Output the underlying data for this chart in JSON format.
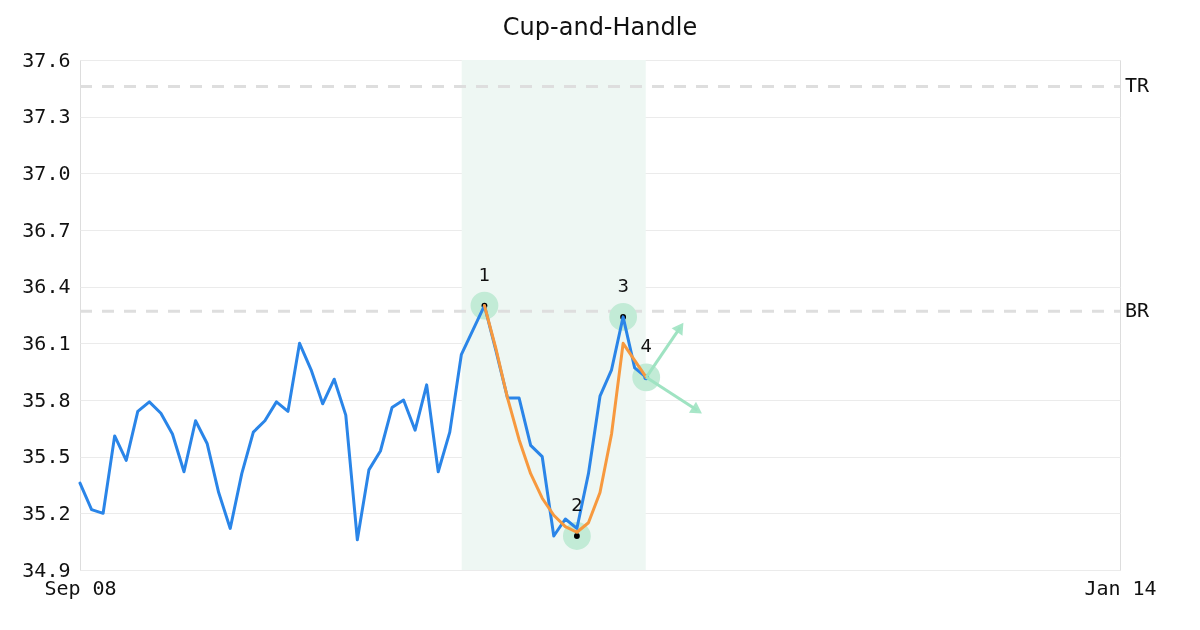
{
  "chart_data": {
    "type": "line",
    "title": "Cup-and-Handle",
    "categories": [
      "Sep 08",
      null,
      null,
      null,
      null,
      null,
      null,
      null,
      null,
      null,
      null,
      null,
      null,
      null,
      null,
      null,
      null,
      null,
      null,
      null,
      null,
      null,
      null,
      null,
      null,
      null,
      null,
      null,
      null,
      null,
      null,
      null,
      null,
      null,
      null,
      null,
      null,
      null,
      null,
      null,
      null,
      null,
      null,
      null,
      null,
      null,
      null,
      null,
      null,
      null,
      null,
      null,
      null,
      null,
      null,
      null,
      null,
      null,
      null,
      null,
      null,
      null,
      null,
      null,
      null,
      null,
      null,
      null,
      null,
      null,
      null,
      null,
      null,
      null,
      null,
      null,
      null,
      null,
      null,
      null,
      null,
      null,
      null,
      null,
      null,
      null,
      null,
      null,
      null,
      null,
      "Jan 14"
    ],
    "ylim": [
      34.9,
      37.6
    ],
    "yticks": [
      34.9,
      35.2,
      35.5,
      35.8,
      36.1,
      36.4,
      36.7,
      {
        "value": 37,
        "label": "37.0"
      },
      37.3,
      37.6
    ],
    "grid": "y",
    "series": [
      {
        "color": "#2a85e8",
        "values": [
          35.36,
          35.22,
          35.2,
          35.61,
          35.48,
          35.74,
          35.79,
          35.73,
          35.62,
          35.42,
          35.69,
          35.57,
          35.31,
          35.12,
          35.41,
          35.63,
          35.69,
          35.79,
          35.74,
          36.1,
          35.96,
          35.78,
          35.91,
          35.72,
          35.06,
          35.43,
          35.53,
          35.76,
          35.8,
          35.64,
          35.88,
          35.42,
          35.63,
          36.04,
          36.17,
          36.3,
          36.06,
          35.81,
          35.81,
          35.56,
          35.5,
          35.08,
          35.17,
          35.12,
          35.41,
          35.82,
          35.96,
          36.24,
          35.97,
          35.92,
          null,
          null,
          null,
          null,
          null,
          null,
          null,
          null,
          null,
          null,
          null,
          null,
          null,
          null,
          null,
          null,
          null,
          null,
          null,
          null,
          null,
          null,
          null,
          null,
          null,
          null,
          null,
          null,
          null,
          null,
          null,
          null,
          null,
          null,
          null,
          null,
          null,
          null,
          null,
          null,
          null
        ]
      },
      {
        "color": "#f7993e",
        "values": [
          null,
          null,
          null,
          null,
          null,
          null,
          null,
          null,
          null,
          null,
          null,
          null,
          null,
          null,
          null,
          null,
          null,
          null,
          null,
          null,
          null,
          null,
          null,
          null,
          null,
          null,
          null,
          null,
          null,
          null,
          null,
          null,
          null,
          null,
          null,
          36.3,
          36.07,
          35.81,
          35.59,
          35.41,
          35.28,
          35.19,
          35.13,
          35.1,
          35.15,
          35.31,
          35.62,
          36.1,
          36.01,
          35.92,
          null,
          null,
          null,
          null,
          null,
          null,
          null,
          null,
          null,
          null,
          null,
          null,
          null,
          null,
          null,
          null,
          null,
          null,
          null,
          null,
          null,
          null,
          null,
          null,
          null,
          null,
          null,
          null,
          null,
          null,
          null,
          null,
          null,
          null,
          null,
          null,
          null,
          null,
          null,
          null,
          null
        ]
      },
      {
        "type": "scatter",
        "marker": "circle",
        "values": [
          null,
          null,
          null,
          null,
          null,
          null,
          null,
          null,
          null,
          null,
          null,
          null,
          null,
          null,
          null,
          null,
          null,
          null,
          null,
          null,
          null,
          null,
          null,
          null,
          null,
          null,
          null,
          null,
          null,
          null,
          null,
          null,
          null,
          null,
          null,
          36.3,
          null,
          null,
          null,
          null,
          null,
          null,
          null,
          35.08,
          null,
          null,
          null,
          36.24,
          null,
          35.92,
          null,
          null,
          null,
          null,
          null,
          null,
          null,
          null,
          null,
          null,
          null,
          null,
          null,
          null,
          null,
          null,
          null,
          null,
          null,
          null,
          null,
          null,
          null,
          null,
          null,
          null,
          null,
          null,
          null,
          null,
          null,
          null,
          null,
          null,
          null,
          null,
          null,
          null,
          null,
          null,
          null
        ],
        "colors": [
          null,
          null,
          null,
          null,
          null,
          null,
          null,
          null,
          null,
          null,
          null,
          null,
          null,
          null,
          null,
          null,
          null,
          null,
          null,
          null,
          null,
          null,
          null,
          null,
          null,
          null,
          null,
          null,
          null,
          null,
          null,
          null,
          null,
          null,
          null,
          "#000000",
          null,
          null,
          null,
          null,
          null,
          null,
          null,
          "#000000",
          null,
          null,
          null,
          "#000000",
          null,
          "#2a85e8",
          null,
          null,
          null,
          null,
          null,
          null,
          null,
          null,
          null,
          null,
          null,
          null,
          null,
          null,
          null,
          null,
          null,
          null,
          null,
          null,
          null,
          null,
          null,
          null,
          null,
          null,
          null,
          null,
          null,
          null,
          null,
          null,
          null,
          null,
          null,
          null,
          null,
          null,
          null,
          null,
          null
        ]
      }
    ],
    "ref_lines": [
      {
        "axis": "y",
        "value": 37.46,
        "label": "TR",
        "color": "#dedede",
        "line_style": "dashed"
      },
      {
        "axis": "y",
        "value": 36.27,
        "label": "BR",
        "color": "#dedede",
        "line_style": "dashed"
      }
    ],
    "annotations": [
      {
        "text": "1",
        "y": 36.3
      },
      {
        "text": "2",
        "y": 35.08
      },
      {
        "text": "3",
        "y": 36.24
      },
      {
        "text": "4",
        "y": 35.92
      }
    ]
  }
}
